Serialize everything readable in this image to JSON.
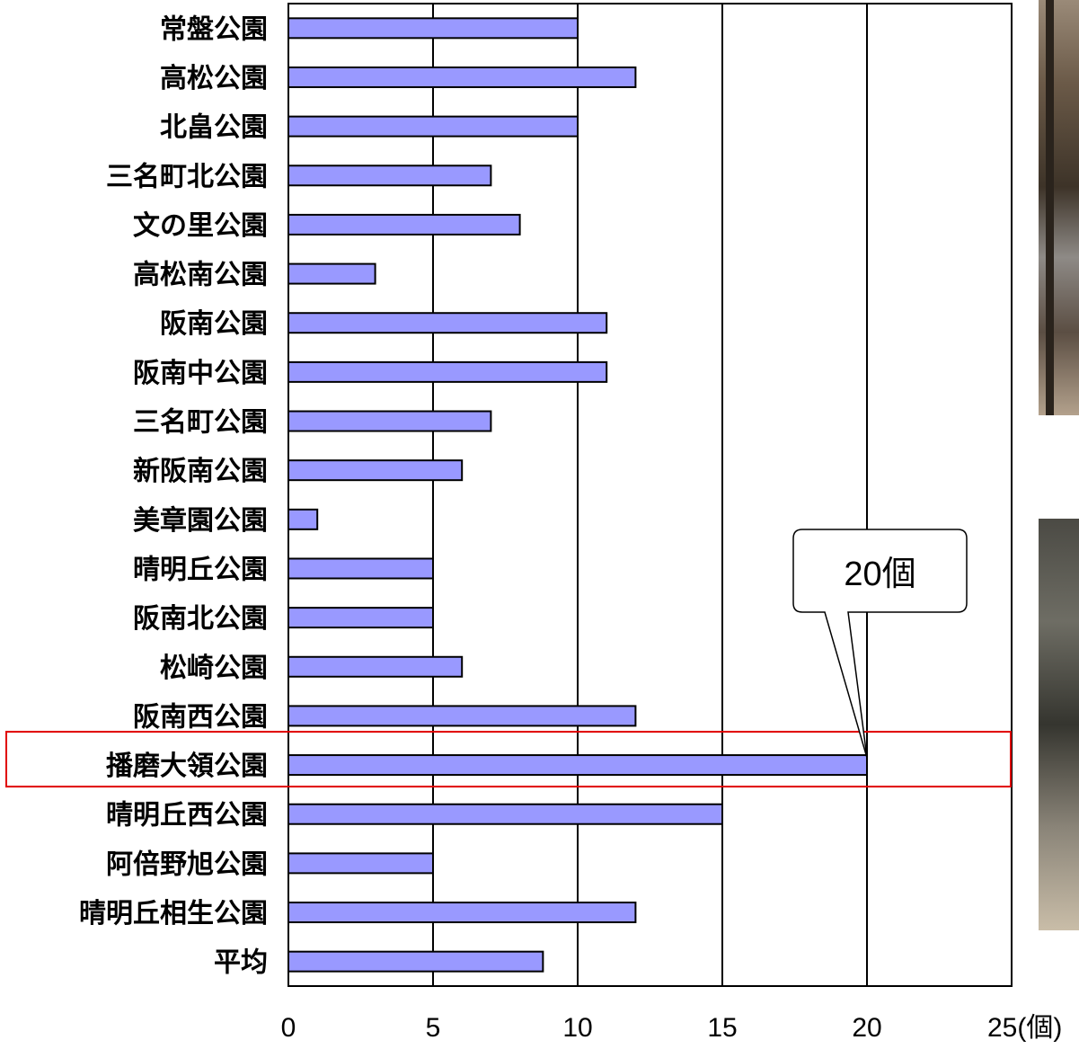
{
  "chart_data": {
    "type": "bar",
    "orientation": "horizontal",
    "categories": [
      "常盤公園",
      "高松公園",
      "北畠公園",
      "三名町北公園",
      "文の里公園",
      "高松南公園",
      "阪南公園",
      "阪南中公園",
      "三名町公園",
      "新阪南公園",
      "美章園公園",
      "晴明丘公園",
      "阪南北公園",
      "松崎公園",
      "阪南西公園",
      "播磨大領公園",
      "晴明丘西公園",
      "阿倍野旭公園",
      "晴明丘相生公園",
      "平均"
    ],
    "values": [
      10,
      12,
      10,
      7,
      8,
      3,
      11,
      11,
      7,
      6,
      1,
      5,
      5,
      6,
      12,
      20,
      15,
      5,
      12,
      8.8
    ],
    "xlim": [
      0,
      25
    ],
    "xticks": [
      "0",
      "5",
      "10",
      "15",
      "20",
      "25(個)"
    ],
    "grid": true,
    "bar_color": "#9999ff",
    "highlight": {
      "category": "播磨大領公園",
      "color": "#e00000"
    },
    "annotation": {
      "text": "20個",
      "target": "播磨大領公園"
    }
  },
  "photos": [
    {
      "name": "park-photo-top"
    },
    {
      "name": "park-photo-bottom"
    }
  ]
}
